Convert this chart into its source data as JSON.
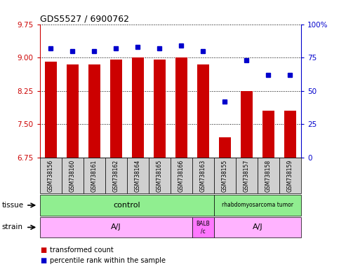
{
  "title": "GDS5527 / 6900762",
  "samples": [
    "GSM738156",
    "GSM738160",
    "GSM738161",
    "GSM738162",
    "GSM738164",
    "GSM738165",
    "GSM738166",
    "GSM738163",
    "GSM738155",
    "GSM738157",
    "GSM738158",
    "GSM738159"
  ],
  "bar_values": [
    8.9,
    8.85,
    8.85,
    8.95,
    9.0,
    8.95,
    9.0,
    8.85,
    7.2,
    8.25,
    7.8,
    7.8
  ],
  "percentile_values": [
    82,
    80,
    80,
    82,
    83,
    82,
    84,
    80,
    42,
    73,
    62,
    62
  ],
  "bar_bottom": 6.75,
  "ylim_left": [
    6.75,
    9.75
  ],
  "ylim_right": [
    0,
    100
  ],
  "yticks_left": [
    6.75,
    7.5,
    8.25,
    9.0,
    9.75
  ],
  "yticks_right": [
    0,
    25,
    50,
    75,
    100
  ],
  "bar_color": "#cc0000",
  "dot_color": "#0000cc",
  "tick_color_left": "#cc0000",
  "tick_color_right": "#0000cc",
  "grid_color": "#888888",
  "sample_box_color": "#d0d0d0",
  "tissue_control_color": "#90EE90",
  "tissue_tumor_color": "#90EE90",
  "strain_aj_color": "#FFB3FF",
  "strain_balb_color": "#FF77FF",
  "legend_items": [
    {
      "color": "#cc0000",
      "label": "transformed count"
    },
    {
      "color": "#0000cc",
      "label": "percentile rank within the sample"
    }
  ],
  "n_control": 8,
  "n_total": 12,
  "balb_idx": 7,
  "n_aj1": 7,
  "n_tumor": 4
}
